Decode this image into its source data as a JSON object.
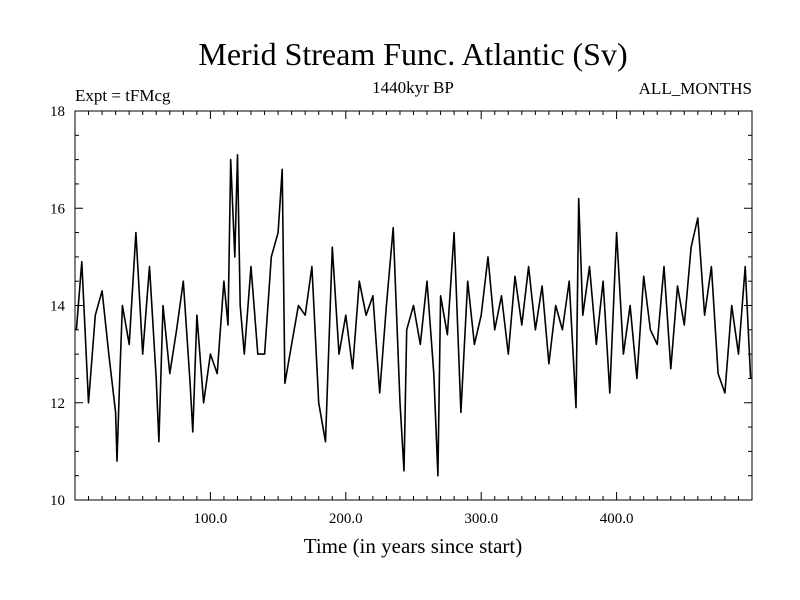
{
  "chart_data": {
    "type": "line",
    "title": "Merid Stream Func. Atlantic (Sv)",
    "left_note": "Expt = tFMcg",
    "center_note": "1440kyr BP",
    "right_note": "ALL_MONTHS",
    "xlabel": "Time (in years since start)",
    "ylabel": "",
    "xlim": [
      0,
      500
    ],
    "ylim": [
      10,
      18
    ],
    "xticks": [
      100,
      200,
      300,
      400
    ],
    "xtick_labels": [
      "100.0",
      "200.0",
      "300.0",
      "400.0"
    ],
    "yticks": [
      10,
      12,
      14,
      16,
      18
    ],
    "ytick_labels": [
      "10",
      "12",
      "14",
      "16",
      "18"
    ],
    "grid": false,
    "series": [
      {
        "name": "Merid Stream Func. Atlantic",
        "x": [
          1,
          5,
          10,
          15,
          20,
          25,
          30,
          31,
          33,
          35,
          40,
          45,
          50,
          55,
          60,
          62,
          65,
          70,
          75,
          80,
          85,
          87,
          90,
          95,
          100,
          105,
          110,
          113,
          115,
          118,
          120,
          122,
          125,
          130,
          135,
          140,
          145,
          150,
          153,
          155,
          160,
          165,
          170,
          175,
          180,
          185,
          190,
          195,
          200,
          205,
          210,
          215,
          220,
          225,
          230,
          235,
          240,
          243,
          245,
          250,
          255,
          260,
          265,
          268,
          270,
          275,
          280,
          285,
          290,
          295,
          300,
          305,
          310,
          315,
          320,
          325,
          330,
          335,
          340,
          345,
          350,
          355,
          360,
          365,
          370,
          372,
          375,
          380,
          385,
          390,
          395,
          400,
          405,
          410,
          415,
          420,
          425,
          430,
          435,
          440,
          445,
          450,
          455,
          460,
          465,
          470,
          475,
          480,
          485,
          490,
          495,
          499
        ],
        "y": [
          13.5,
          14.9,
          12.0,
          13.8,
          14.3,
          13.0,
          11.8,
          10.8,
          12.5,
          14.0,
          13.2,
          15.5,
          13.0,
          14.8,
          12.5,
          11.2,
          14.0,
          12.6,
          13.5,
          14.5,
          12.4,
          11.4,
          13.8,
          12.0,
          13.0,
          12.6,
          14.5,
          13.6,
          17.0,
          15.0,
          17.1,
          14.0,
          13.0,
          14.8,
          13.0,
          13.0,
          15.0,
          15.5,
          16.8,
          12.4,
          13.2,
          14.0,
          13.8,
          14.8,
          12.0,
          11.2,
          15.2,
          13.0,
          13.8,
          12.7,
          14.5,
          13.8,
          14.2,
          12.2,
          14.0,
          15.6,
          12.0,
          10.6,
          13.5,
          14.0,
          13.2,
          14.5,
          12.6,
          10.5,
          14.2,
          13.4,
          15.5,
          11.8,
          14.5,
          13.2,
          13.8,
          15.0,
          13.5,
          14.2,
          13.0,
          14.6,
          13.6,
          14.8,
          13.5,
          14.4,
          12.8,
          14.0,
          13.5,
          14.5,
          11.9,
          16.2,
          13.8,
          14.8,
          13.2,
          14.5,
          12.2,
          15.5,
          13.0,
          14.0,
          12.5,
          14.6,
          13.5,
          13.2,
          14.8,
          12.7,
          14.4,
          13.6,
          15.2,
          15.8,
          13.8,
          14.8,
          12.6,
          12.2,
          14.0,
          13.0,
          14.8,
          12.5
        ]
      }
    ]
  }
}
